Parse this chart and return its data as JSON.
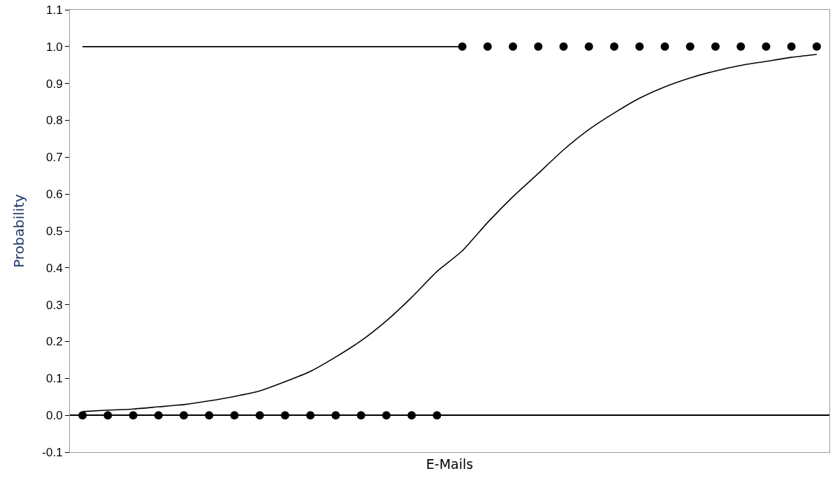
{
  "chart_data": {
    "type": "scatter",
    "xlabel": "E-Mails",
    "ylabel": "Probability",
    "categories": [
      null,
      null,
      null,
      null,
      null,
      null,
      null,
      null,
      null,
      null,
      null,
      null,
      null,
      null,
      null,
      null,
      null,
      null,
      null,
      null,
      null,
      null,
      null,
      null,
      null,
      null,
      null,
      null,
      null,
      null
    ],
    "series": [
      {
        "type": "line",
        "color": "#000000",
        "marker": "none",
        "values": [
          1,
          1,
          1,
          1,
          1,
          1,
          1,
          1,
          1,
          1,
          1,
          1,
          1,
          1,
          1,
          1,
          null,
          null,
          null,
          null,
          null,
          null,
          null,
          null,
          null,
          null,
          null,
          null,
          null,
          null
        ]
      },
      {
        "type": "line",
        "color": "#000000",
        "marker": "none",
        "values": [
          0.01,
          0.014,
          0.017,
          0.023,
          0.029,
          0.039,
          0.051,
          0.066,
          0.091,
          0.119,
          0.158,
          0.202,
          0.256,
          0.32,
          0.39,
          0.446,
          0.523,
          0.593,
          0.656,
          0.72,
          0.775,
          0.82,
          0.86,
          0.891,
          0.915,
          0.934,
          0.949,
          0.96,
          0.971,
          0.979
        ]
      },
      {
        "color": "#000000",
        "marker": "circle",
        "values": [
          0,
          0,
          0,
          0,
          0,
          0,
          0,
          0,
          0,
          0,
          0,
          0,
          0,
          0,
          0,
          null,
          null,
          null,
          null,
          null,
          null,
          null,
          null,
          null,
          null,
          null,
          null,
          null,
          null,
          null
        ]
      },
      {
        "color": "#000000",
        "marker": "circle",
        "values": [
          null,
          null,
          null,
          null,
          null,
          null,
          null,
          null,
          null,
          null,
          null,
          null,
          null,
          null,
          null,
          1,
          1,
          1,
          1,
          1,
          1,
          1,
          1,
          1,
          1,
          1,
          1,
          1,
          1,
          1
        ]
      }
    ],
    "ylim": [
      -0.1,
      1.1
    ],
    "yticks": [
      {
        "value": -0.1,
        "label": "-0.1"
      },
      {
        "value": 0,
        "label": "0.0"
      },
      {
        "value": 0.1,
        "label": "0.1"
      },
      {
        "value": 0.2,
        "label": "0.2"
      },
      {
        "value": 0.3,
        "label": "0.3"
      },
      {
        "value": 0.4,
        "label": "0.4"
      },
      {
        "value": 0.5,
        "label": "0.5"
      },
      {
        "value": 0.6,
        "label": "0.6"
      },
      {
        "value": 0.7,
        "label": "0.7"
      },
      {
        "value": 0.8,
        "label": "0.8"
      },
      {
        "value": 0.9,
        "label": "0.9"
      },
      {
        "value": 1,
        "label": "1.0"
      },
      {
        "value": 1.1,
        "label": "1.1"
      }
    ],
    "tick_labels": "y",
    "grid": false
  }
}
